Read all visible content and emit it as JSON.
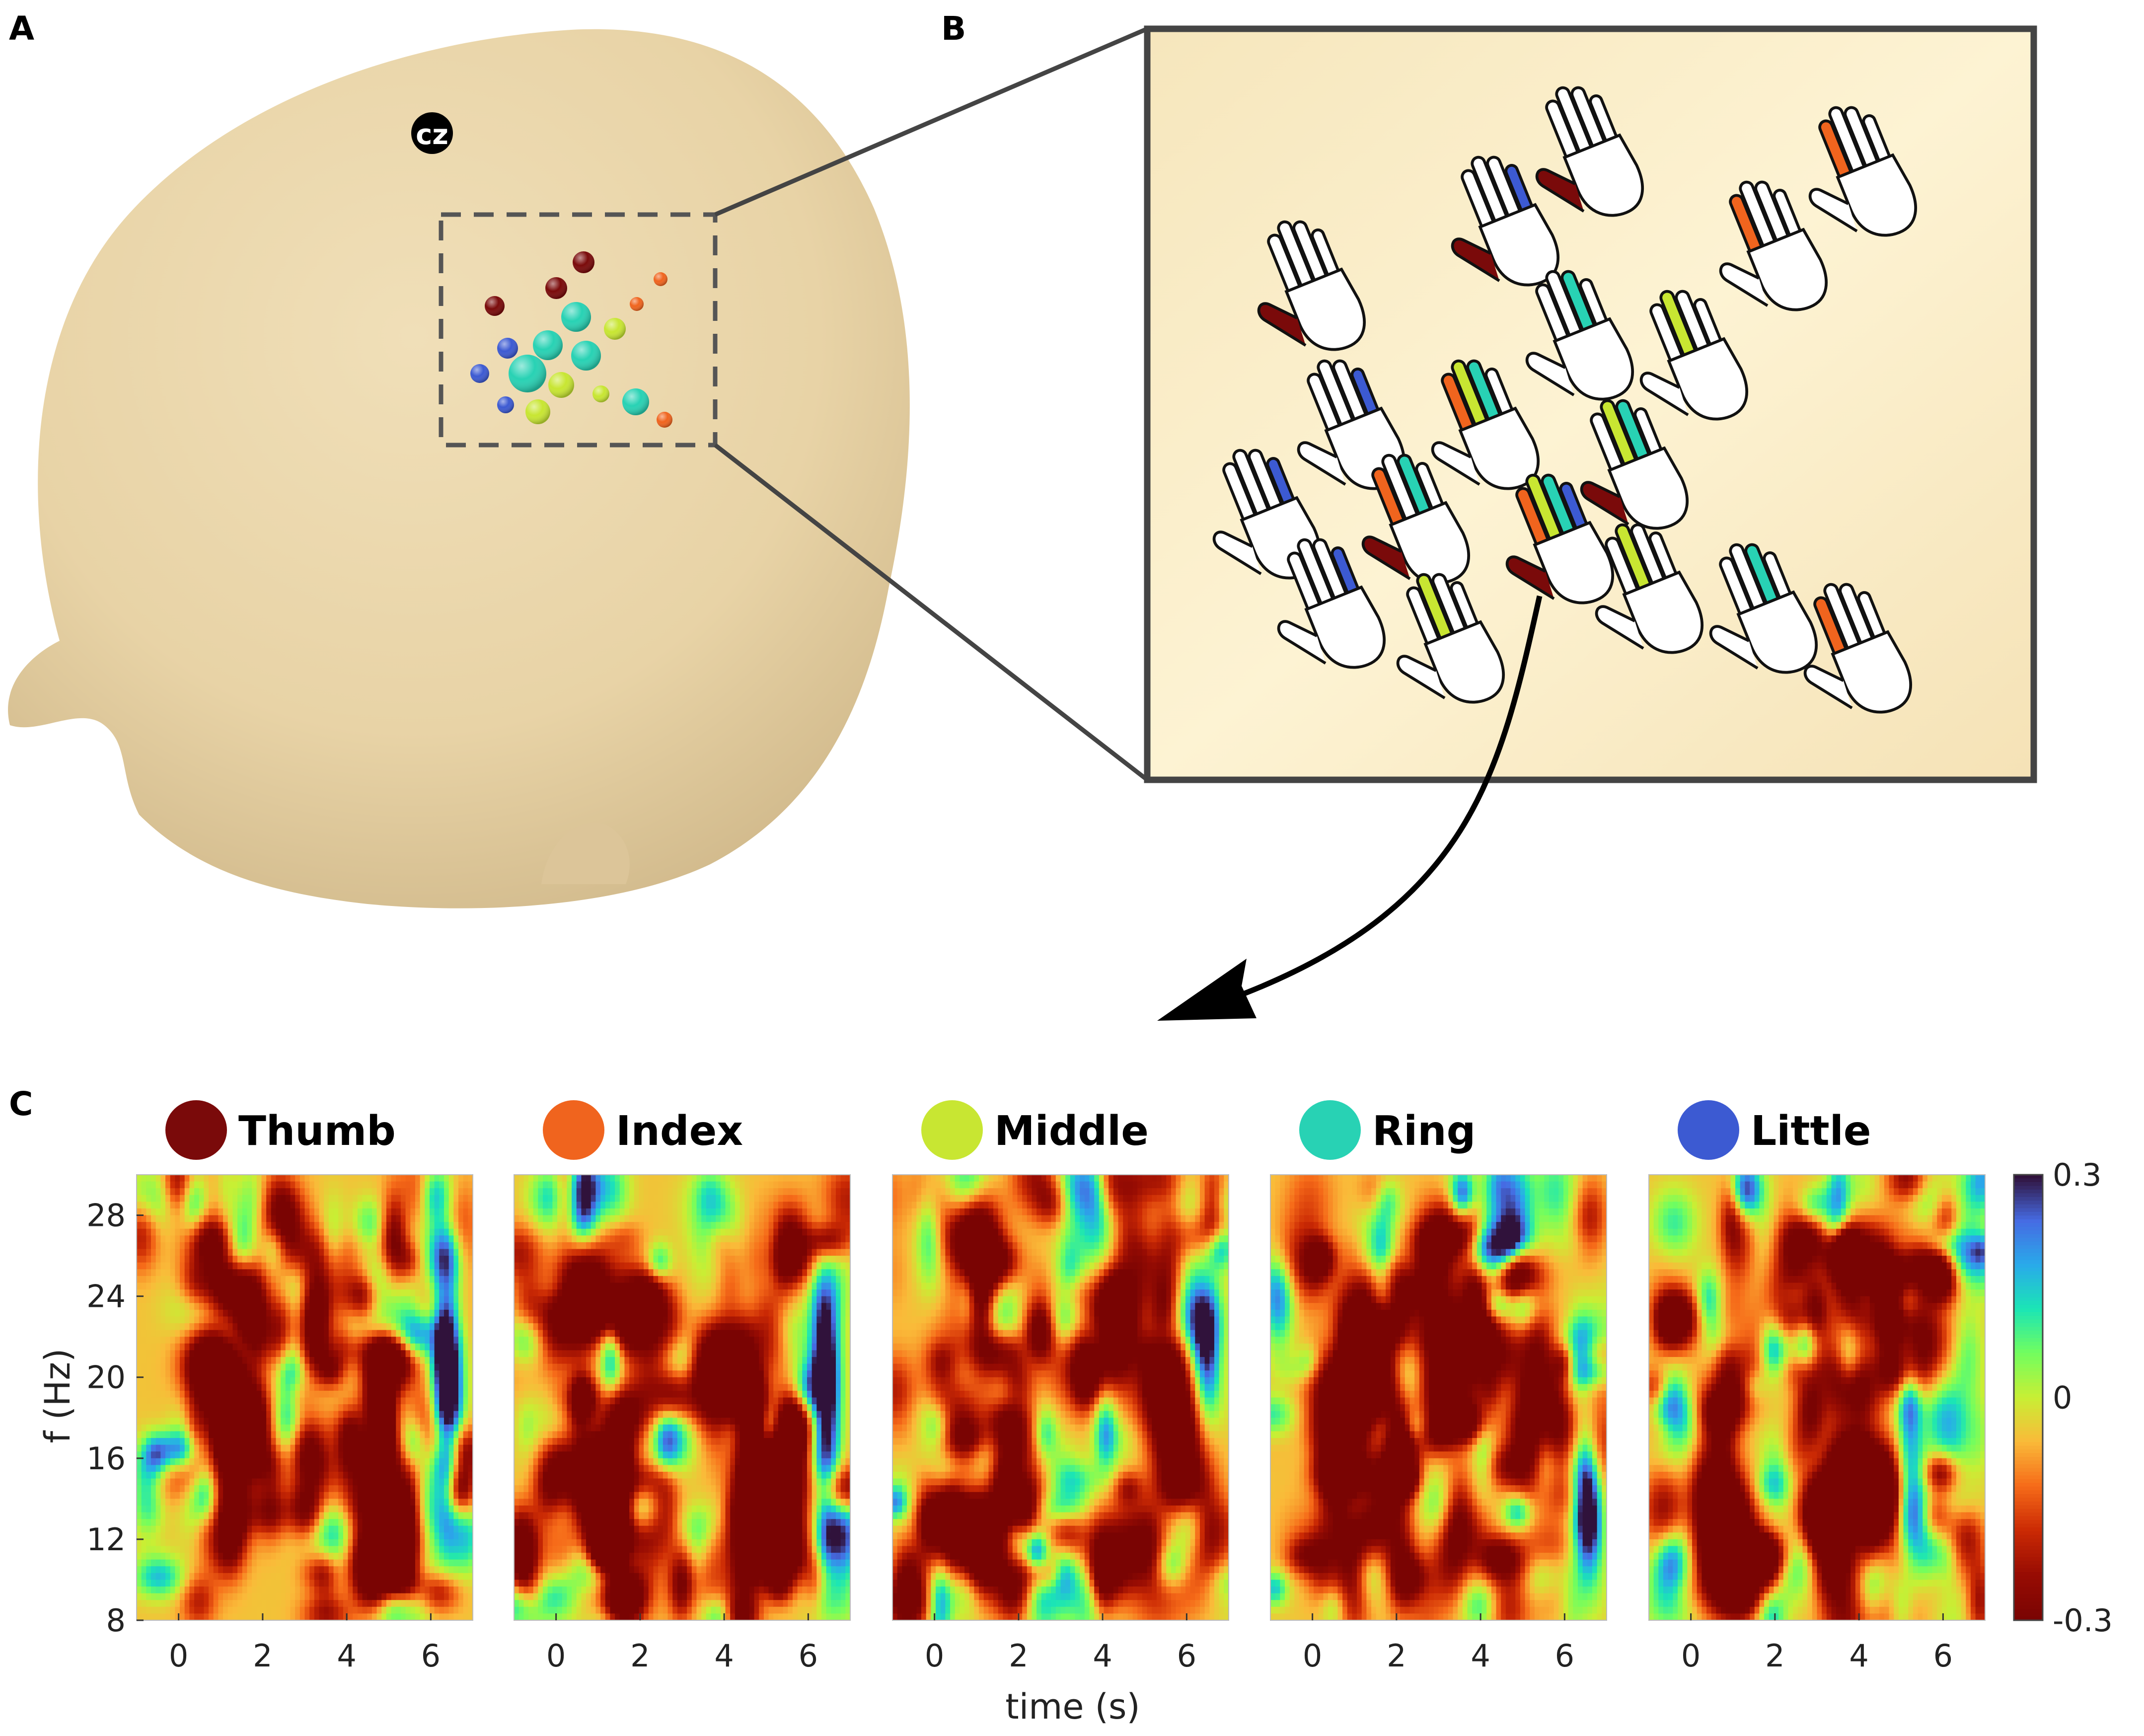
{
  "panels": {
    "a": {
      "letter": "A",
      "landmark_label": "cz"
    },
    "b": {
      "letter": "B"
    },
    "c": {
      "letter": "C"
    }
  },
  "electrode_colors": {
    "thumb": "#7a0a0a",
    "index": "#f0641e",
    "middle": "#c8e632",
    "ring": "#28d2b4",
    "little": "#3c5ad2"
  },
  "chart_data": {
    "type": "heatmap",
    "n_panels": 5,
    "panels": [
      {
        "name": "Thumb",
        "color": "#7a0a0a"
      },
      {
        "name": "Index",
        "color": "#f0641e"
      },
      {
        "name": "Middle",
        "color": "#c8e632"
      },
      {
        "name": "Ring",
        "color": "#28d2b4"
      },
      {
        "name": "Little",
        "color": "#3c5ad2"
      }
    ],
    "xlabel": "time (s)",
    "ylabel": "f (Hz)",
    "xlim": [
      -1,
      7
    ],
    "ylim": [
      8,
      30
    ],
    "xticks": [
      "0",
      "2",
      "4",
      "6"
    ],
    "yticks": [
      "8",
      "12",
      "16",
      "20",
      "24",
      "28"
    ],
    "colorbar": {
      "range": [
        -0.3,
        0.3
      ],
      "ticks": [
        "0.3",
        "0",
        "-0.3"
      ],
      "colormap": "turbo-reversed"
    }
  }
}
